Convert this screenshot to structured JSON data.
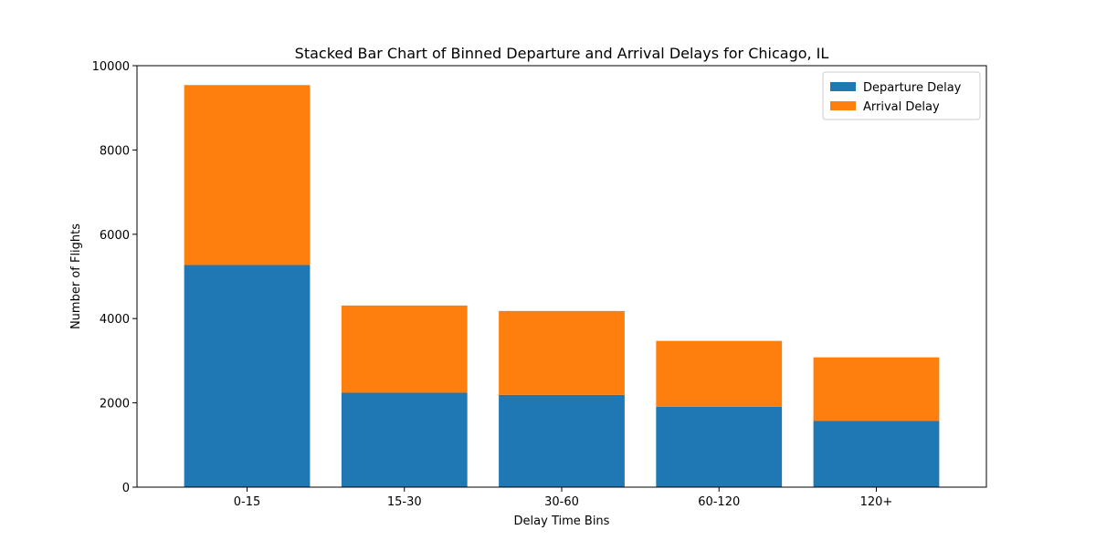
{
  "chart_data": {
    "type": "bar",
    "stacked": true,
    "title": "Stacked Bar Chart of Binned Departure and Arrival Delays for Chicago, IL",
    "xlabel": "Delay Time Bins",
    "ylabel": "Number of Flights",
    "categories": [
      "0-15",
      "15-30",
      "30-60",
      "60-120",
      "120+"
    ],
    "series": [
      {
        "name": "Departure Delay",
        "color": "#1f77b4",
        "values": [
          5270,
          2240,
          2190,
          1910,
          1570
        ]
      },
      {
        "name": "Arrival Delay",
        "color": "#ff7f0e",
        "values": [
          4270,
          2070,
          1990,
          1560,
          1510
        ]
      }
    ],
    "ylim": [
      0,
      10000
    ],
    "yticks": [
      0,
      2000,
      4000,
      6000,
      8000,
      10000
    ],
    "grid": false,
    "legend_position": "top-right"
  }
}
